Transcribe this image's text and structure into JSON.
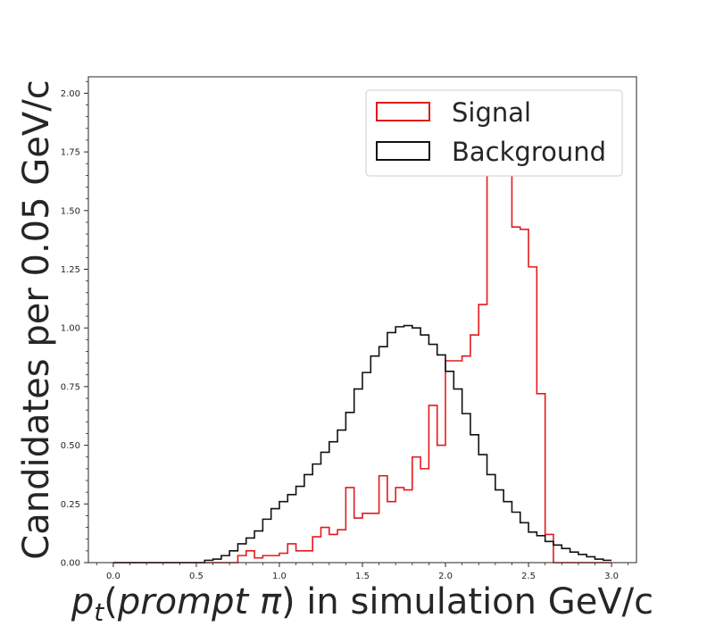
{
  "chart_data": {
    "type": "histogram-step",
    "xlabel_math": "p",
    "xlabel_sub": "t",
    "xlabel_paren_open": "(",
    "xlabel_italic": "prompt π",
    "xlabel_suffix": ") in simulation GeV/c",
    "ylabel": "Candidates per 0.05 GeV/c",
    "xlim": [
      -0.15,
      3.15
    ],
    "ylim": [
      0.0,
      2.07
    ],
    "xticks": [
      0.0,
      0.5,
      1.0,
      1.5,
      2.0,
      2.5,
      3.0
    ],
    "xtick_labels": [
      "0.0",
      "0.5",
      "1.0",
      "1.5",
      "2.0",
      "2.5",
      "3.0"
    ],
    "yticks": [
      0.0,
      0.25,
      0.5,
      0.75,
      1.0,
      1.25,
      1.5,
      1.75,
      2.0
    ],
    "ytick_labels": [
      "0.00",
      "0.25",
      "0.50",
      "0.75",
      "1.00",
      "1.25",
      "1.50",
      "1.75",
      "2.00"
    ],
    "grid": false,
    "legend_position": "top-right",
    "bin_edges_start": 0.0,
    "bin_width": 0.05,
    "series": [
      {
        "name": "Signal",
        "color": "#e31a1c",
        "values": [
          0,
          0,
          0,
          0,
          0,
          0,
          0,
          0,
          0,
          0,
          0,
          0,
          0,
          0,
          0,
          0.03,
          0.05,
          0.02,
          0.03,
          0.03,
          0.04,
          0.08,
          0.05,
          0.05,
          0.11,
          0.15,
          0.12,
          0.14,
          0.32,
          0.19,
          0.21,
          0.21,
          0.37,
          0.26,
          0.32,
          0.31,
          0.45,
          0.4,
          0.67,
          0.5,
          0.86,
          0.86,
          0.88,
          0.97,
          1.1,
          1.67,
          1.96,
          1.67,
          1.43,
          1.42,
          1.26,
          0.72,
          0.12,
          0,
          0,
          0,
          0,
          0,
          0,
          0
        ]
      },
      {
        "name": "Background",
        "color": "#111111",
        "values": [
          0,
          0,
          0,
          0,
          0,
          0,
          0,
          0,
          0,
          0,
          0,
          0.01,
          0.015,
          0.03,
          0.05,
          0.08,
          0.105,
          0.135,
          0.185,
          0.23,
          0.26,
          0.29,
          0.325,
          0.375,
          0.42,
          0.47,
          0.515,
          0.565,
          0.64,
          0.74,
          0.81,
          0.88,
          0.92,
          0.98,
          1.005,
          1.01,
          1.0,
          0.97,
          0.93,
          0.885,
          0.815,
          0.74,
          0.635,
          0.545,
          0.46,
          0.375,
          0.31,
          0.26,
          0.215,
          0.17,
          0.13,
          0.115,
          0.09,
          0.075,
          0.06,
          0.045,
          0.035,
          0.025,
          0.015,
          0.01
        ]
      }
    ]
  }
}
